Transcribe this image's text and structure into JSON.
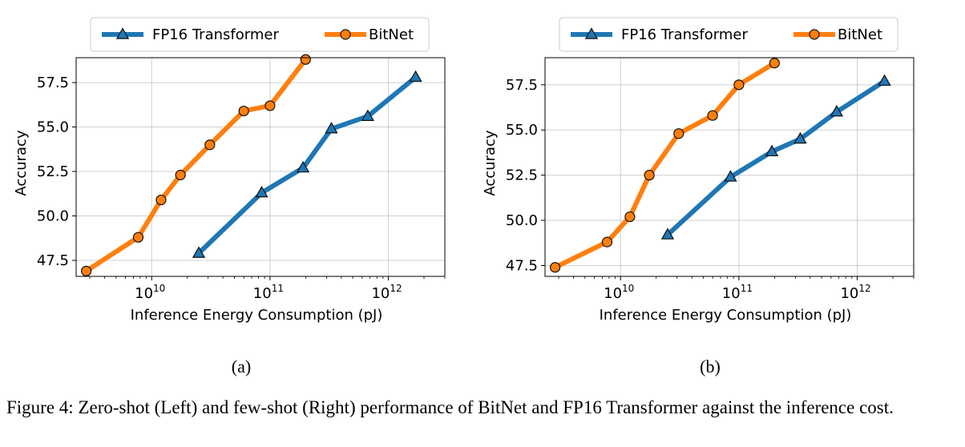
{
  "chart_data": [
    {
      "type": "line",
      "panel_label": "(a)",
      "xlabel": "Inference Energy Consumption (pJ)",
      "ylabel": "Accuracy",
      "x_scale": "log",
      "xlim": [
        2300000000.0,
        3000000000000.0
      ],
      "ylim": [
        46.6,
        58.9
      ],
      "x_ticks": [
        10000000000.0,
        100000000000.0,
        1000000000000.0
      ],
      "x_tick_labels": [
        {
          "base": "10",
          "exp": "10"
        },
        {
          "base": "10",
          "exp": "11"
        },
        {
          "base": "10",
          "exp": "12"
        }
      ],
      "y_ticks": [
        47.5,
        50.0,
        52.5,
        55.0,
        57.5
      ],
      "y_tick_labels": [
        "47.5",
        "50.0",
        "52.5",
        "55.0",
        "57.5"
      ],
      "grid": true,
      "legend_position": "top-center",
      "series": [
        {
          "name": "FP16 Transformer",
          "color": "#1f77b4",
          "marker": "triangle",
          "x": [
            25000000000.0,
            85000000000.0,
            190000000000.0,
            330000000000.0,
            670000000000.0,
            1700000000000.0
          ],
          "y": [
            47.9,
            51.3,
            52.7,
            54.9,
            55.6,
            57.8
          ]
        },
        {
          "name": "BitNet",
          "color": "#ff7f0e",
          "marker": "circle",
          "x": [
            2800000000.0,
            7700000000.0,
            12000000000.0,
            17500000000.0,
            31000000000.0,
            60000000000.0,
            100000000000.0,
            200000000000.0
          ],
          "y": [
            46.9,
            48.8,
            50.9,
            52.3,
            54.0,
            55.9,
            56.2,
            58.8
          ]
        }
      ]
    },
    {
      "type": "line",
      "panel_label": "(b)",
      "xlabel": "Inference Energy Consumption (pJ)",
      "ylabel": "Accuracy",
      "x_scale": "log",
      "xlim": [
        2300000000.0,
        3000000000000.0
      ],
      "ylim": [
        46.9,
        59.0
      ],
      "x_ticks": [
        10000000000.0,
        100000000000.0,
        1000000000000.0
      ],
      "x_tick_labels": [
        {
          "base": "10",
          "exp": "10"
        },
        {
          "base": "10",
          "exp": "11"
        },
        {
          "base": "10",
          "exp": "12"
        }
      ],
      "y_ticks": [
        47.5,
        50.0,
        52.5,
        55.0,
        57.5
      ],
      "y_tick_labels": [
        "47.5",
        "50.0",
        "52.5",
        "55.0",
        "57.5"
      ],
      "grid": true,
      "legend_position": "top-center",
      "series": [
        {
          "name": "FP16 Transformer",
          "color": "#1f77b4",
          "marker": "triangle",
          "x": [
            25000000000.0,
            85000000000.0,
            190000000000.0,
            330000000000.0,
            670000000000.0,
            1700000000000.0
          ],
          "y": [
            49.2,
            52.4,
            53.8,
            54.5,
            56.0,
            57.7
          ]
        },
        {
          "name": "BitNet",
          "color": "#ff7f0e",
          "marker": "circle",
          "x": [
            2800000000.0,
            7700000000.0,
            12000000000.0,
            17500000000.0,
            31000000000.0,
            60000000000.0,
            100000000000.0,
            200000000000.0
          ],
          "y": [
            47.4,
            48.8,
            50.2,
            52.5,
            54.8,
            55.8,
            57.5,
            58.7
          ]
        }
      ]
    }
  ],
  "caption": "Figure 4: Zero-shot (Left) and few-shot (Right) performance of BitNet and FP16 Transformer against the inference cost."
}
